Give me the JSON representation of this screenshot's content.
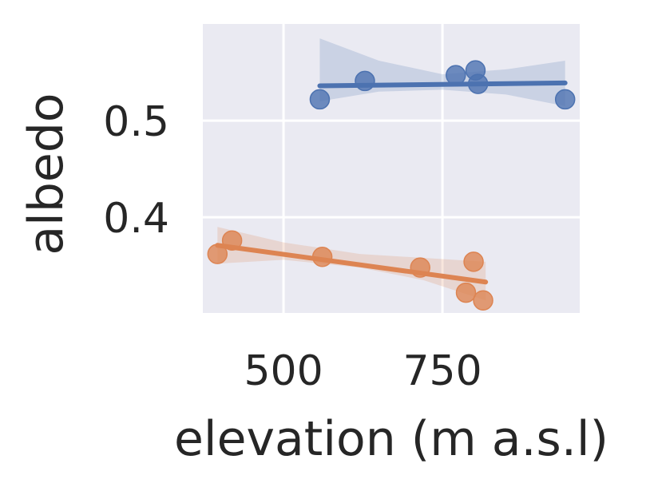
{
  "chart_data": {
    "type": "scatter",
    "xlabel": "elevation (m a.s.l)",
    "ylabel": "albedo",
    "xlim": [
      373,
      966
    ],
    "ylim": [
      0.301,
      0.6
    ],
    "xticks": [
      500,
      750
    ],
    "yticks": [
      0.4,
      0.5
    ],
    "xtick_labels": [
      "500",
      "750"
    ],
    "ytick_labels": [
      "0.4",
      "0.5"
    ],
    "grid": true,
    "style": "seaborn-darkgrid",
    "series": [
      {
        "color": "#4c72b0",
        "points": [
          {
            "x": 557,
            "y": 0.522
          },
          {
            "x": 628,
            "y": 0.541
          },
          {
            "x": 771,
            "y": 0.547
          },
          {
            "x": 802,
            "y": 0.552
          },
          {
            "x": 806,
            "y": 0.538
          },
          {
            "x": 943,
            "y": 0.522
          }
        ],
        "fit": {
          "x": [
            557,
            943
          ],
          "y": [
            0.536,
            0.539
          ]
        },
        "ci_upper": [
          0.585,
          0.562,
          0.548,
          0.553,
          0.562
        ],
        "ci_lower": [
          0.52,
          0.53,
          0.532,
          0.527,
          0.515
        ],
        "ci_x": [
          557,
          650,
          750,
          850,
          943
        ]
      },
      {
        "color": "#dd8452",
        "points": [
          {
            "x": 396,
            "y": 0.362
          },
          {
            "x": 419,
            "y": 0.376
          },
          {
            "x": 561,
            "y": 0.359
          },
          {
            "x": 715,
            "y": 0.348
          },
          {
            "x": 787,
            "y": 0.322
          },
          {
            "x": 799,
            "y": 0.354
          },
          {
            "x": 814,
            "y": 0.314
          }
        ],
        "fit": {
          "x": [
            396,
            818
          ],
          "y": [
            0.371,
            0.333
          ]
        },
        "ci_upper": [
          0.39,
          0.374,
          0.362,
          0.358,
          0.354
        ],
        "ci_lower": [
          0.352,
          0.356,
          0.348,
          0.335,
          0.314
        ],
        "ci_x": [
          396,
          500,
          620,
          720,
          818
        ]
      }
    ]
  }
}
